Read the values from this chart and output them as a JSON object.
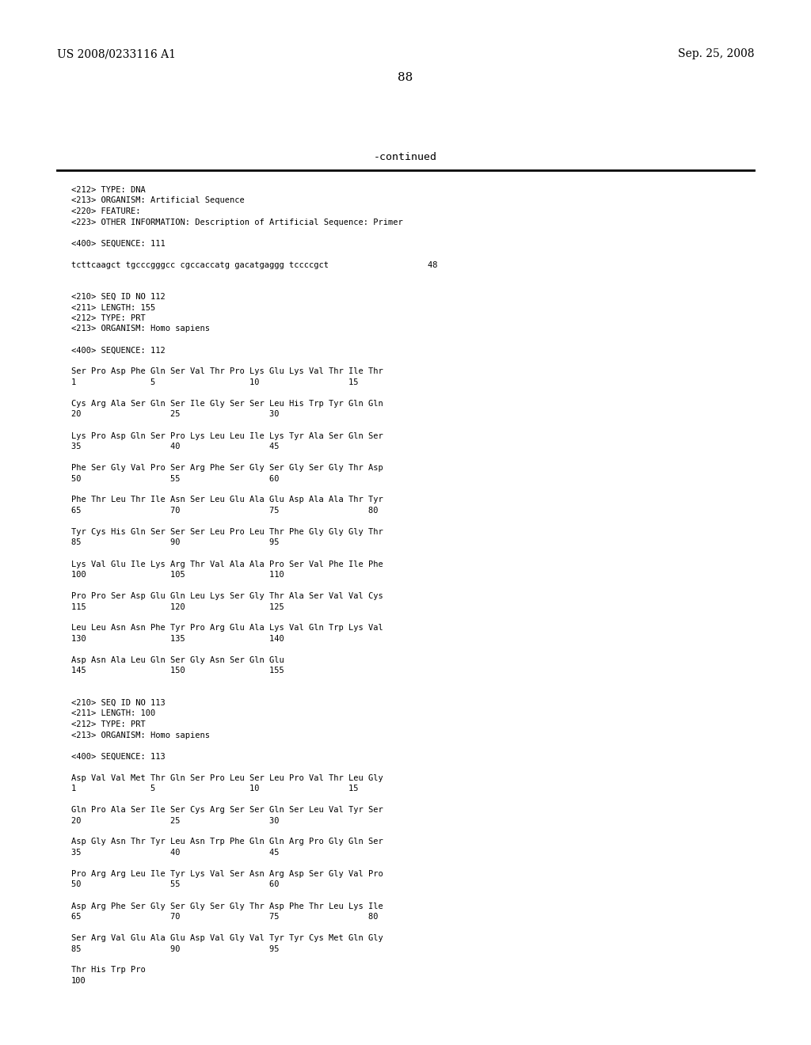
{
  "background_color": "#ffffff",
  "header_left": "US 2008/0233116 A1",
  "header_right": "Sep. 25, 2008",
  "page_number": "88",
  "continued_text": "-continued",
  "monospace_fontsize": 7.5,
  "header_fontsize": 10.0,
  "page_num_fontsize": 11.0,
  "continued_fontsize": 9.5,
  "content_lines": [
    {
      "text": "<212> TYPE: DNA",
      "indent": 0
    },
    {
      "text": "<213> ORGANISM: Artificial Sequence",
      "indent": 0
    },
    {
      "text": "<220> FEATURE:",
      "indent": 0
    },
    {
      "text": "<223> OTHER INFORMATION: Description of Artificial Sequence: Primer",
      "indent": 0
    },
    {
      "text": "",
      "indent": 0
    },
    {
      "text": "<400> SEQUENCE: 111",
      "indent": 0
    },
    {
      "text": "",
      "indent": 0
    },
    {
      "text": "tcttcaagct tgcccgggcc cgccaccatg gacatgaggg tccccgct                    48",
      "indent": 0
    },
    {
      "text": "",
      "indent": 0
    },
    {
      "text": "",
      "indent": 0
    },
    {
      "text": "<210> SEQ ID NO 112",
      "indent": 0
    },
    {
      "text": "<211> LENGTH: 155",
      "indent": 0
    },
    {
      "text": "<212> TYPE: PRT",
      "indent": 0
    },
    {
      "text": "<213> ORGANISM: Homo sapiens",
      "indent": 0
    },
    {
      "text": "",
      "indent": 0
    },
    {
      "text": "<400> SEQUENCE: 112",
      "indent": 0
    },
    {
      "text": "",
      "indent": 0
    },
    {
      "text": "Ser Pro Asp Phe Gln Ser Val Thr Pro Lys Glu Lys Val Thr Ile Thr",
      "indent": 0
    },
    {
      "text": "1               5                   10                  15",
      "indent": 0
    },
    {
      "text": "",
      "indent": 0
    },
    {
      "text": "Cys Arg Ala Ser Gln Ser Ile Gly Ser Ser Leu His Trp Tyr Gln Gln",
      "indent": 0
    },
    {
      "text": "20                  25                  30",
      "indent": 0
    },
    {
      "text": "",
      "indent": 0
    },
    {
      "text": "Lys Pro Asp Gln Ser Pro Lys Leu Leu Ile Lys Tyr Ala Ser Gln Ser",
      "indent": 0
    },
    {
      "text": "35                  40                  45",
      "indent": 0
    },
    {
      "text": "",
      "indent": 0
    },
    {
      "text": "Phe Ser Gly Val Pro Ser Arg Phe Ser Gly Ser Gly Ser Gly Thr Asp",
      "indent": 0
    },
    {
      "text": "50                  55                  60",
      "indent": 0
    },
    {
      "text": "",
      "indent": 0
    },
    {
      "text": "Phe Thr Leu Thr Ile Asn Ser Leu Glu Ala Glu Asp Ala Ala Thr Tyr",
      "indent": 0
    },
    {
      "text": "65                  70                  75                  80",
      "indent": 0
    },
    {
      "text": "",
      "indent": 0
    },
    {
      "text": "Tyr Cys His Gln Ser Ser Ser Leu Pro Leu Thr Phe Gly Gly Gly Thr",
      "indent": 0
    },
    {
      "text": "85                  90                  95",
      "indent": 0
    },
    {
      "text": "",
      "indent": 0
    },
    {
      "text": "Lys Val Glu Ile Lys Arg Thr Val Ala Ala Pro Ser Val Phe Ile Phe",
      "indent": 0
    },
    {
      "text": "100                 105                 110",
      "indent": 0
    },
    {
      "text": "",
      "indent": 0
    },
    {
      "text": "Pro Pro Ser Asp Glu Gln Leu Lys Ser Gly Thr Ala Ser Val Val Cys",
      "indent": 0
    },
    {
      "text": "115                 120                 125",
      "indent": 0
    },
    {
      "text": "",
      "indent": 0
    },
    {
      "text": "Leu Leu Asn Asn Phe Tyr Pro Arg Glu Ala Lys Val Gln Trp Lys Val",
      "indent": 0
    },
    {
      "text": "130                 135                 140",
      "indent": 0
    },
    {
      "text": "",
      "indent": 0
    },
    {
      "text": "Asp Asn Ala Leu Gln Ser Gly Asn Ser Gln Glu",
      "indent": 0
    },
    {
      "text": "145                 150                 155",
      "indent": 0
    },
    {
      "text": "",
      "indent": 0
    },
    {
      "text": "",
      "indent": 0
    },
    {
      "text": "<210> SEQ ID NO 113",
      "indent": 0
    },
    {
      "text": "<211> LENGTH: 100",
      "indent": 0
    },
    {
      "text": "<212> TYPE: PRT",
      "indent": 0
    },
    {
      "text": "<213> ORGANISM: Homo sapiens",
      "indent": 0
    },
    {
      "text": "",
      "indent": 0
    },
    {
      "text": "<400> SEQUENCE: 113",
      "indent": 0
    },
    {
      "text": "",
      "indent": 0
    },
    {
      "text": "Asp Val Val Met Thr Gln Ser Pro Leu Ser Leu Pro Val Thr Leu Gly",
      "indent": 0
    },
    {
      "text": "1               5                   10                  15",
      "indent": 0
    },
    {
      "text": "",
      "indent": 0
    },
    {
      "text": "Gln Pro Ala Ser Ile Ser Cys Arg Ser Ser Gln Ser Leu Val Tyr Ser",
      "indent": 0
    },
    {
      "text": "20                  25                  30",
      "indent": 0
    },
    {
      "text": "",
      "indent": 0
    },
    {
      "text": "Asp Gly Asn Thr Tyr Leu Asn Trp Phe Gln Gln Arg Pro Gly Gln Ser",
      "indent": 0
    },
    {
      "text": "35                  40                  45",
      "indent": 0
    },
    {
      "text": "",
      "indent": 0
    },
    {
      "text": "Pro Arg Arg Leu Ile Tyr Lys Val Ser Asn Arg Asp Ser Gly Val Pro",
      "indent": 0
    },
    {
      "text": "50                  55                  60",
      "indent": 0
    },
    {
      "text": "",
      "indent": 0
    },
    {
      "text": "Asp Arg Phe Ser Gly Ser Gly Ser Gly Thr Asp Phe Thr Leu Lys Ile",
      "indent": 0
    },
    {
      "text": "65                  70                  75                  80",
      "indent": 0
    },
    {
      "text": "",
      "indent": 0
    },
    {
      "text": "Ser Arg Val Glu Ala Glu Asp Val Gly Val Tyr Tyr Cys Met Gln Gly",
      "indent": 0
    },
    {
      "text": "85                  90                  95",
      "indent": 0
    },
    {
      "text": "",
      "indent": 0
    },
    {
      "text": "Thr His Trp Pro",
      "indent": 0
    },
    {
      "text": "100",
      "indent": 0
    }
  ]
}
